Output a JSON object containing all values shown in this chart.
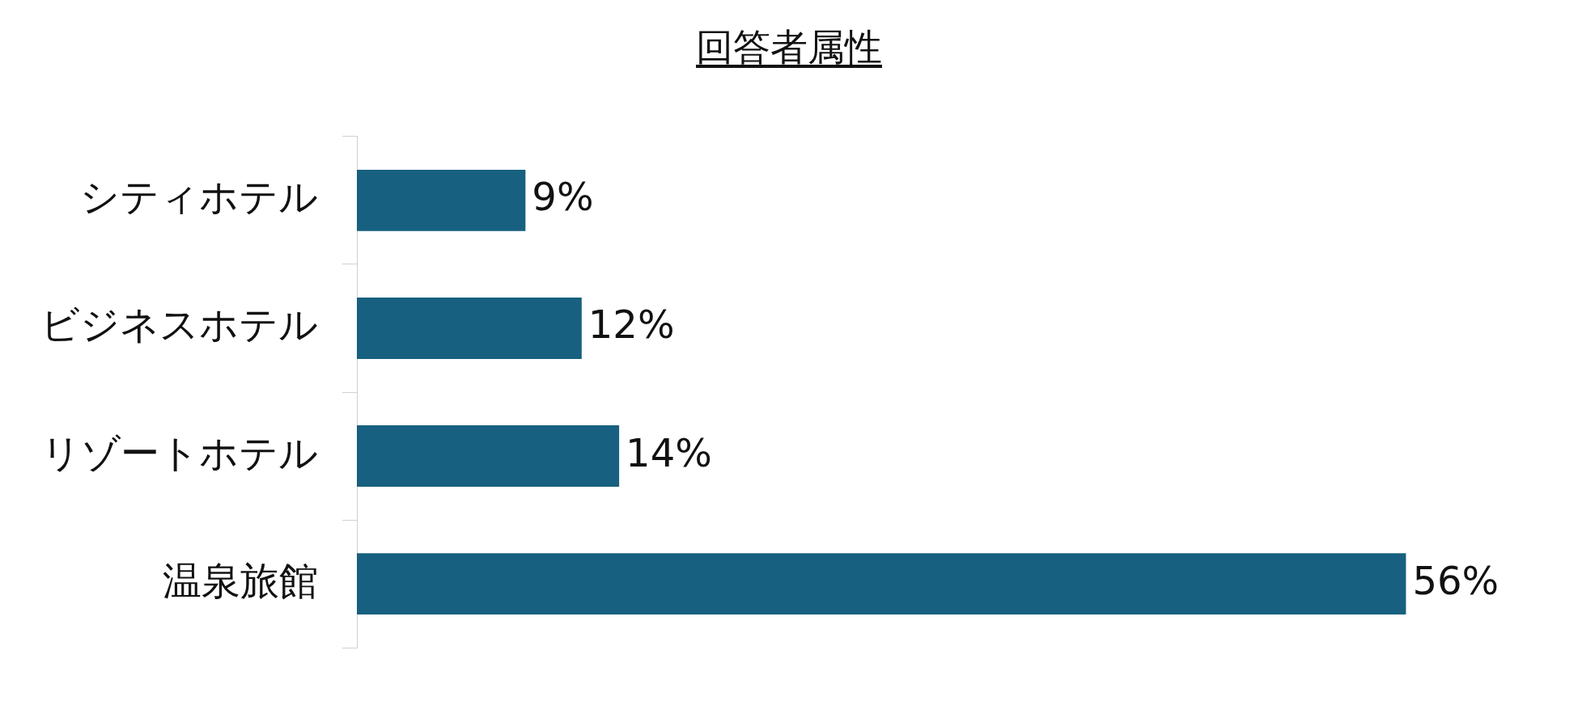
{
  "chart_data": {
    "type": "bar",
    "orientation": "horizontal",
    "title": "回答者属性",
    "categories": [
      "シティホテル",
      "ビジネスホテル",
      "リゾートホテル",
      "温泉旅館"
    ],
    "values": [
      9,
      12,
      14,
      56
    ],
    "color": "#17607f",
    "data_labels": true,
    "value_labels": [
      "9%",
      "12%",
      "14%",
      "56%"
    ],
    "legend": false
  }
}
